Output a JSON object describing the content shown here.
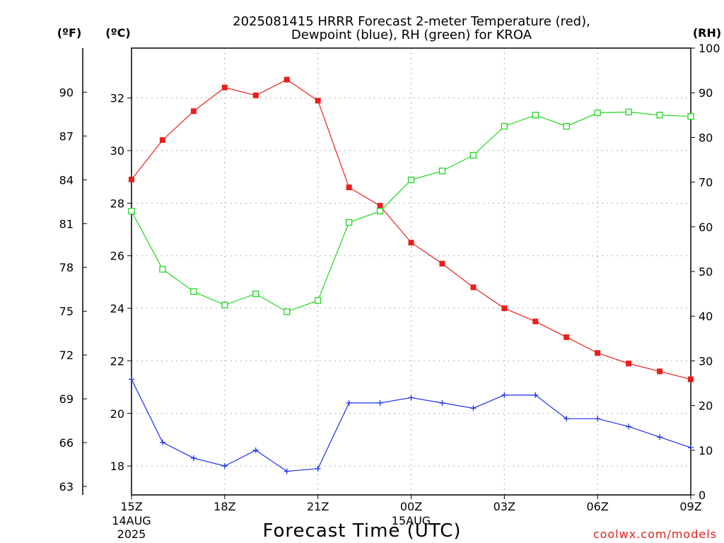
{
  "chart_data": {
    "type": "line",
    "title_line1": "2025081415 HRRR Forecast 2-meter Temperature (red),",
    "title_line2": "Dewpoint (blue), RH (green) for KROA",
    "xlabel": "Forecast Time (UTC)",
    "credit": "coolwx.com/models",
    "unit_f": "(ºF)",
    "unit_c": "(ºC)",
    "unit_rh": "(RH)",
    "x": [
      "15Z",
      "16Z",
      "17Z",
      "18Z",
      "19Z",
      "20Z",
      "21Z",
      "22Z",
      "23Z",
      "00Z",
      "01Z",
      "02Z",
      "03Z",
      "04Z",
      "05Z",
      "06Z",
      "07Z",
      "08Z",
      "09Z"
    ],
    "x_tick_labels": [
      {
        "label": "15Z",
        "sub1": "14AUG",
        "sub2": "2025"
      },
      {
        "label": "18Z",
        "sub1": "",
        "sub2": ""
      },
      {
        "label": "21Z",
        "sub1": "",
        "sub2": ""
      },
      {
        "label": "00Z",
        "sub1": "15AUG",
        "sub2": ""
      },
      {
        "label": "03Z",
        "sub1": "",
        "sub2": ""
      },
      {
        "label": "06Z",
        "sub1": "",
        "sub2": ""
      },
      {
        "label": "09Z",
        "sub1": "",
        "sub2": ""
      }
    ],
    "c_axis": {
      "ticks": [
        18,
        20,
        22,
        24,
        26,
        28,
        30,
        32
      ],
      "ylim": [
        16.9,
        33.9
      ]
    },
    "f_axis": {
      "ticks": [
        63,
        66,
        69,
        72,
        75,
        78,
        81,
        84,
        87,
        90
      ]
    },
    "rh_axis": {
      "ticks": [
        0,
        10,
        20,
        30,
        40,
        50,
        60,
        70,
        80,
        90,
        100
      ],
      "ylim": [
        0,
        100
      ]
    },
    "grid": true,
    "series": [
      {
        "name": "Temperature",
        "color": "#e8201c",
        "marker": "filled-square",
        "axis": "c",
        "values": [
          28.9,
          30.4,
          31.5,
          32.4,
          32.1,
          32.7,
          31.9,
          28.6,
          27.9,
          26.5,
          25.7,
          24.8,
          24.0,
          23.5,
          22.9,
          22.3,
          21.9,
          21.6,
          21.3
        ]
      },
      {
        "name": "Dewpoint",
        "color": "#1c30e8",
        "marker": "plus",
        "axis": "c",
        "values": [
          21.3,
          18.9,
          18.3,
          18.0,
          18.6,
          17.8,
          17.9,
          20.4,
          20.4,
          20.6,
          20.4,
          20.2,
          20.7,
          20.7,
          19.8,
          19.8,
          19.5,
          19.1,
          18.7
        ]
      },
      {
        "name": "RH",
        "color": "#1fd81f",
        "marker": "open-square",
        "axis": "rh",
        "values": [
          63.5,
          50.5,
          45.5,
          42.5,
          45.0,
          41.0,
          43.5,
          61.0,
          63.5,
          70.5,
          72.5,
          76.0,
          82.5,
          85.0,
          82.5,
          85.5,
          85.7,
          85.0,
          84.7
        ]
      }
    ]
  }
}
